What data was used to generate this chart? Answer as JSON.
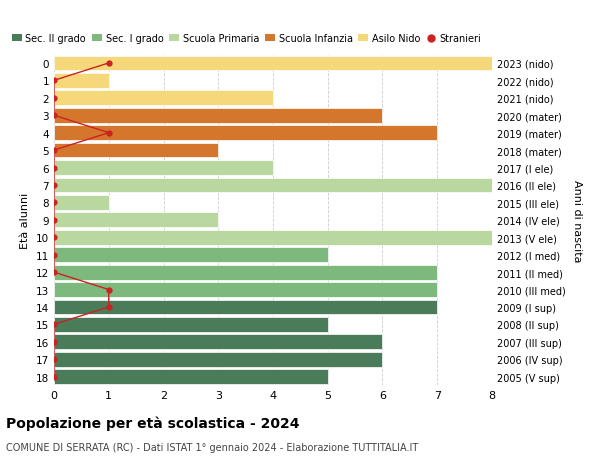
{
  "ages": [
    18,
    17,
    16,
    15,
    14,
    13,
    12,
    11,
    10,
    9,
    8,
    7,
    6,
    5,
    4,
    3,
    2,
    1,
    0
  ],
  "years": [
    "2005 (V sup)",
    "2006 (IV sup)",
    "2007 (III sup)",
    "2008 (II sup)",
    "2009 (I sup)",
    "2010 (III med)",
    "2011 (II med)",
    "2012 (I med)",
    "2013 (V ele)",
    "2014 (IV ele)",
    "2015 (III ele)",
    "2016 (II ele)",
    "2017 (I ele)",
    "2018 (mater)",
    "2019 (mater)",
    "2020 (mater)",
    "2021 (nido)",
    "2022 (nido)",
    "2023 (nido)"
  ],
  "values": [
    5,
    6,
    6,
    5,
    7,
    7,
    7,
    5,
    8,
    3,
    1,
    8,
    4,
    3,
    7,
    6,
    4,
    1,
    8
  ],
  "colors": [
    "#4a7c59",
    "#4a7c59",
    "#4a7c59",
    "#4a7c59",
    "#4a7c59",
    "#7db87d",
    "#7db87d",
    "#7db87d",
    "#b8d8a0",
    "#b8d8a0",
    "#b8d8a0",
    "#b8d8a0",
    "#b8d8a0",
    "#d4762b",
    "#d4762b",
    "#d4762b",
    "#f5d87a",
    "#f5d87a",
    "#f5d87a"
  ],
  "stranieri": [
    0,
    0,
    0,
    0,
    1,
    1,
    0,
    0,
    0,
    0,
    0,
    0,
    0,
    0,
    1,
    0,
    0,
    0,
    1
  ],
  "legend_labels": [
    "Sec. II grado",
    "Sec. I grado",
    "Scuola Primaria",
    "Scuola Infanzia",
    "Asilo Nido",
    "Stranieri"
  ],
  "legend_colors": [
    "#4a7c59",
    "#7db87d",
    "#b8d8a0",
    "#d4762b",
    "#f5d87a",
    "#cc2222"
  ],
  "title": "Popolazione per età scolastica - 2024",
  "subtitle": "COMUNE DI SERRATA (RC) - Dati ISTAT 1° gennaio 2024 - Elaborazione TUTTITALIA.IT",
  "ylabel_left": "Età alunni",
  "ylabel_right": "Anni di nascita",
  "xlim": [
    0,
    8
  ],
  "bg_color": "#ffffff",
  "grid_color": "#cccccc"
}
